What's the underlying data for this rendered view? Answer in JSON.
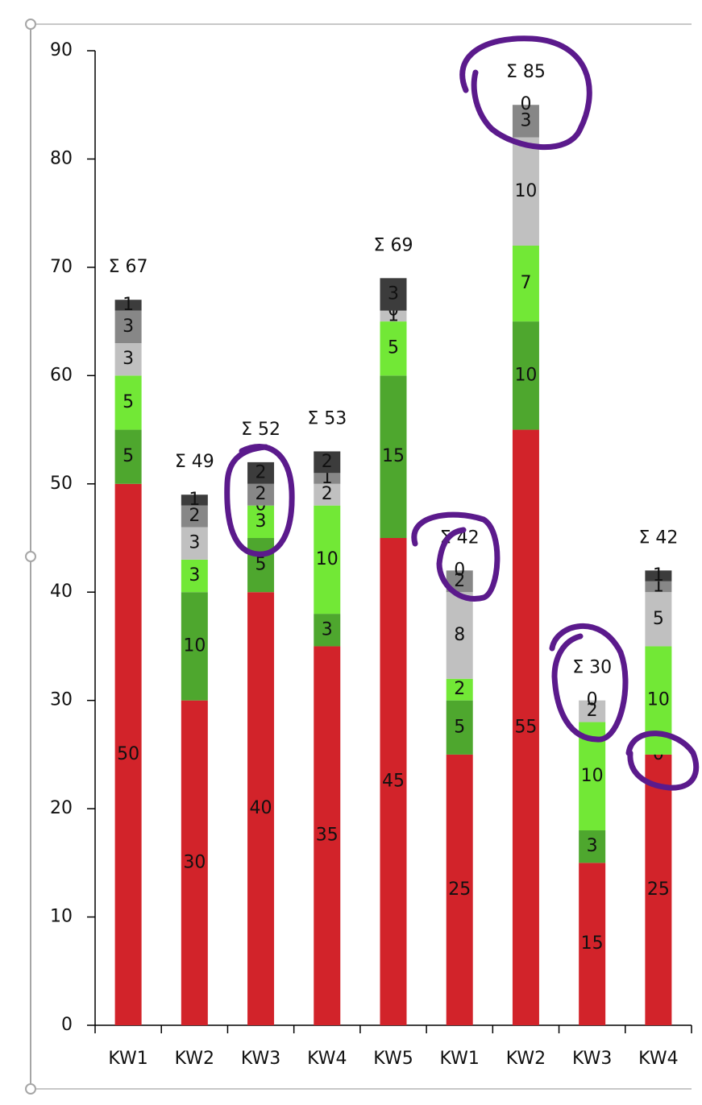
{
  "chart_data": {
    "type": "stacked-bar",
    "categories": [
      "KW1",
      "KW2",
      "KW3",
      "KW4",
      "KW5",
      "KW1",
      "KW2",
      "KW3",
      "KW4"
    ],
    "series": [
      {
        "color": "#d2232a",
        "values": [
          50,
          30,
          40,
          35,
          45,
          25,
          55,
          15,
          25
        ]
      },
      {
        "color": "#4ea72e",
        "values": [
          5,
          10,
          5,
          3,
          15,
          5,
          10,
          3,
          0
        ]
      },
      {
        "color": "#72e836",
        "values": [
          5,
          3,
          3,
          10,
          5,
          2,
          7,
          10,
          10
        ]
      },
      {
        "color": "#c0c0c0",
        "values": [
          3,
          3,
          0,
          2,
          1,
          8,
          10,
          2,
          5
        ]
      },
      {
        "color": "#878787",
        "values": [
          3,
          2,
          2,
          1,
          0,
          2,
          3,
          0,
          1
        ]
      },
      {
        "color": "#3c3c3c",
        "values": [
          1,
          1,
          2,
          2,
          3,
          0,
          0,
          null,
          1
        ]
      }
    ],
    "totals": {
      "values": [
        67,
        49,
        52,
        53,
        69,
        42,
        85,
        30,
        42
      ],
      "value_labels": [
        "Σ 67",
        "Σ 49",
        "Σ 52",
        "Σ 53",
        "Σ 69",
        "Σ 42",
        "Σ 85",
        "Σ 30",
        "Σ 42"
      ]
    },
    "ylim": [
      0,
      90
    ],
    "yticks": [
      0,
      10,
      20,
      30,
      40,
      50,
      60,
      70,
      80,
      90
    ]
  }
}
